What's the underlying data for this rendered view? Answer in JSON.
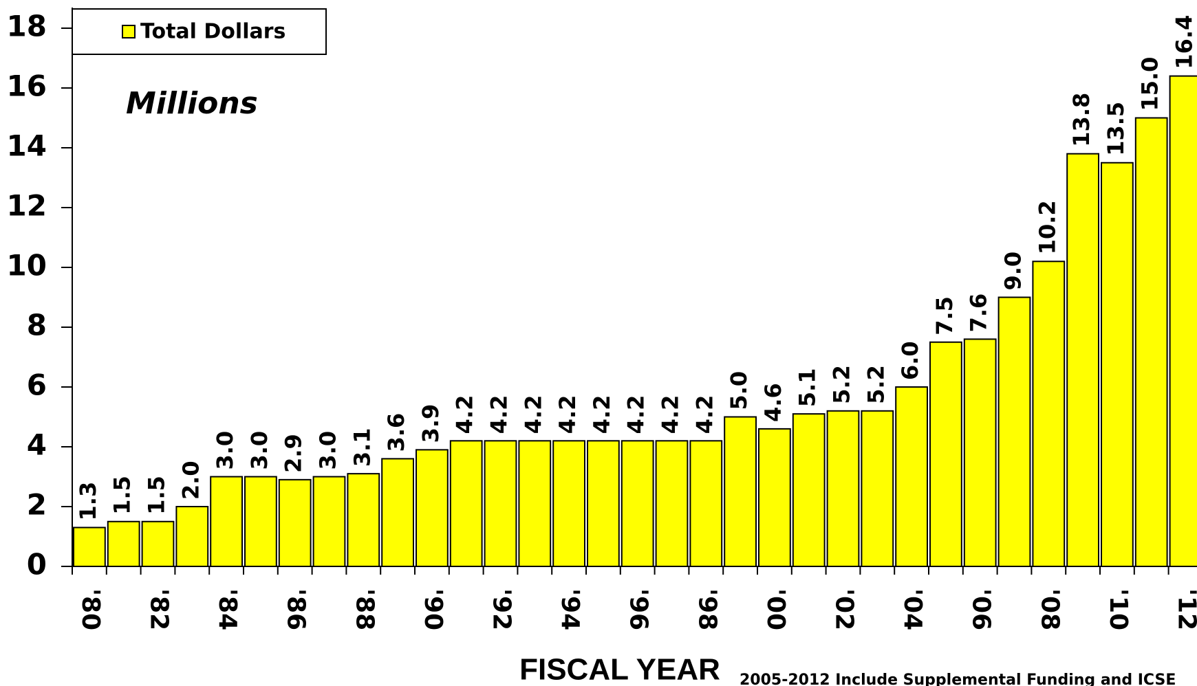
{
  "chart_data": {
    "type": "bar",
    "y_unit_label": "Millions",
    "x_label": "FISCAL YEAR",
    "footnote": "2005-2012 Include Supplemental Funding and ICSE",
    "legend_position": "top-left",
    "categories": [
      "'80",
      null,
      "'82",
      null,
      "'84",
      null,
      "'86",
      null,
      "'88",
      null,
      "'90",
      null,
      "'92",
      null,
      "'94",
      null,
      "'96",
      null,
      "'98",
      null,
      "'00",
      null,
      "'02",
      null,
      "'04",
      null,
      "'06",
      null,
      "'08",
      null,
      "'10",
      null,
      "'12"
    ],
    "series": [
      {
        "name": "Total Dollars",
        "color": "#ffff00",
        "values": [
          1.3,
          1.5,
          1.5,
          2.0,
          3.0,
          3.0,
          2.9,
          3.0,
          3.1,
          3.6,
          3.9,
          4.2,
          4.2,
          4.2,
          4.2,
          4.2,
          4.2,
          4.2,
          4.2,
          5.0,
          4.6,
          5.1,
          5.2,
          5.2,
          6.0,
          7.5,
          7.6,
          9.0,
          10.2,
          13.8,
          13.5,
          15.0,
          16.4
        ],
        "value_labels": [
          "1.3",
          "1.5",
          "1.5",
          "2.0",
          "3.0",
          "3.0",
          "2.9",
          "3.0",
          "3.1",
          "3.6",
          "3.9",
          "4.2",
          "4.2",
          "4.2",
          "4.2",
          "4.2",
          "4.2",
          "4.2",
          "4.2",
          "5.0",
          "4.6",
          "5.1",
          "5.2",
          "5.2",
          "6.0",
          "7.5",
          "7.6",
          "9.0",
          "10.2",
          "13.8",
          "13.5",
          "15.0",
          "16.4"
        ]
      }
    ],
    "ylim": [
      0,
      18
    ],
    "yticks": [
      0,
      2,
      4,
      6,
      8,
      10,
      12,
      14,
      16,
      18
    ]
  }
}
